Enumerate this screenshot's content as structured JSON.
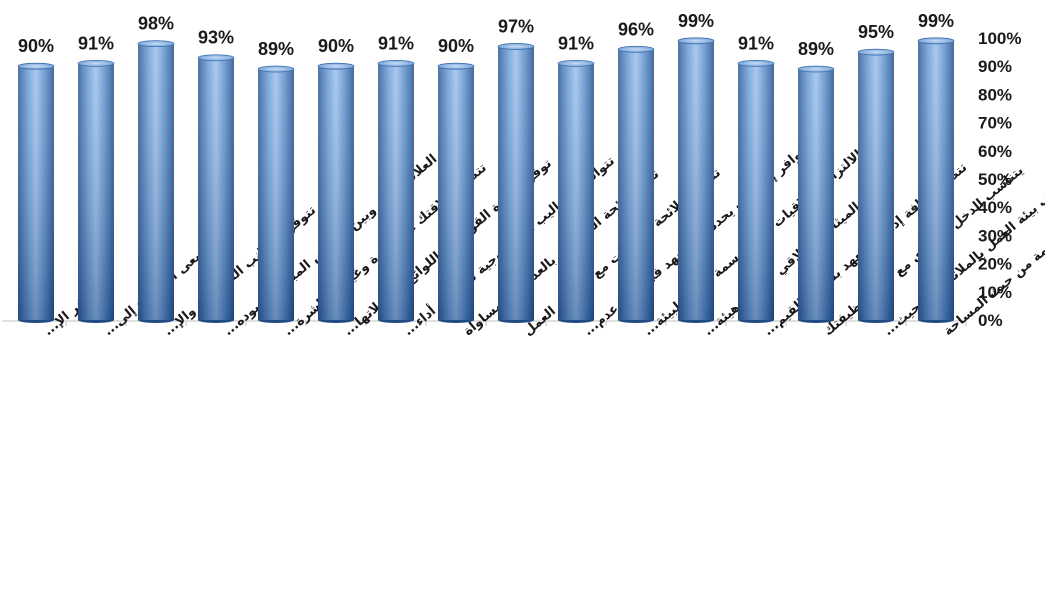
{
  "chart_data": {
    "type": "bar",
    "title": "",
    "xlabel": "",
    "ylabel": "",
    "ylim": [
      0,
      100
    ],
    "y_axis_position": "right",
    "y_ticks": [
      "0%",
      "10%",
      "20%",
      "30%",
      "40%",
      "50%",
      "60%",
      "70%",
      "80%",
      "90%",
      "100%"
    ],
    "grid": false,
    "legend": "none",
    "bar_color": "#4f86c6",
    "categories": [
      "توفر الإ...",
      "يسعى الرؤساء إلى...",
      "تتوفر الجوانب الترفيهية والإ...",
      "العلاقة بينك وبين الرئيس المباشر يسوده...",
      "تتصف علاقتك المباشرة وغير المباشرة...",
      "توفر الإدارة القوانين واللوائح وتعديلاتها...",
      "تتوافر الأساليب التكنولوجية لتسهيل أداء...",
      "تتسم لائحة الجزاءات بالعدالة والمساواة",
      "تتناسب لائحة الإجازات مع ظروف العمل",
      "تتوافر إجراءات يحددها المعهد في حالة عدم...",
      "الالتزام بأخلاقيات المهنة سمة مميزة لبيئة...",
      "تتوافر الميثاق الأخلاقي لأعضاء هيئة...",
      "تتصف ثقافة إدارة المعهد بسيادة القيم...",
      "يتناسب الدخل السنوي مع مهام وظيفتك",
      "تتصف بيئة العمل بالملائمة من حيث...",
      "تتصف بيئة العمل بالملائمة من حيث المساحة"
    ],
    "values": [
      90,
      91,
      98,
      93,
      89,
      90,
      91,
      90,
      97,
      91,
      96,
      99,
      91,
      89,
      95,
      99
    ],
    "value_labels": [
      "90%",
      "91%",
      "98%",
      "93%",
      "89%",
      "90%",
      "91%",
      "90%",
      "97%",
      "91%",
      "96%",
      "99%",
      "91%",
      "89%",
      "95%",
      "99%"
    ]
  }
}
